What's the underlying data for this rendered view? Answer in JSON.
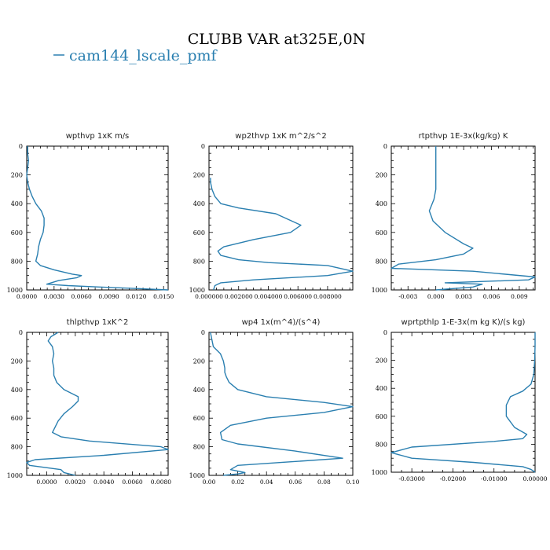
{
  "figure": {
    "title": "CLUBB VAR at325E,0N",
    "legend": [
      {
        "label": "cam144_lscale_pmf",
        "color": "#2a7fb0"
      }
    ]
  },
  "chart_data": [
    {
      "type": "line",
      "title": "wpthvp   1xK m/s",
      "xlim": [
        0,
        0.0155
      ],
      "ylim": [
        1000,
        0
      ],
      "xticks": [
        0.0,
        0.003,
        0.006,
        0.009,
        0.012,
        0.015
      ],
      "xtick_labels": [
        "0.0000",
        "0.0030",
        "0.0060",
        "0.0090",
        "0.0120",
        "0.0150"
      ],
      "yticks": [
        0,
        200,
        400,
        600,
        800,
        1000
      ],
      "ytick_labels": [
        "0",
        "200",
        "400",
        "600",
        "800",
        "1000"
      ],
      "series": [
        {
          "color": "#2a7fb0",
          "x": [
            0.0001,
            0.0001,
            0.0002,
            0.0001,
            0.0,
            0.0001,
            0.0003,
            0.0006,
            0.001,
            0.0016,
            0.0019,
            0.0019,
            0.0018,
            0.0015,
            0.0013,
            0.0012,
            0.001,
            0.0015,
            0.003,
            0.005,
            0.006,
            0.0055,
            0.0035,
            0.0022,
            0.0045,
            0.008,
            0.012,
            0.0155
          ],
          "y": [
            0,
            50,
            100,
            150,
            200,
            250,
            300,
            350,
            400,
            450,
            500,
            550,
            600,
            650,
            700,
            750,
            800,
            830,
            860,
            890,
            900,
            915,
            935,
            960,
            970,
            980,
            990,
            1000
          ]
        }
      ]
    },
    {
      "type": "line",
      "title": "wp2thvp   1xK m^2/s^2",
      "xlim": [
        0,
        0.0097
      ],
      "ylim": [
        1000,
        0
      ],
      "xticks": [
        0.0,
        0.002,
        0.004,
        0.006,
        0.008
      ],
      "xtick_labels": [
        "0.000000",
        "0.002000",
        "0.004000",
        "0.006000",
        "0.008000"
      ],
      "yticks": [
        0,
        200,
        400,
        600,
        800,
        1000
      ],
      "ytick_labels": [
        "0",
        "200",
        "400",
        "600",
        "800",
        "1000"
      ],
      "series": [
        {
          "color": "#2a7fb0",
          "x": [
            0.0001,
            0.0001,
            0.0002,
            0.0004,
            0.0008,
            0.002,
            0.0045,
            0.0062,
            0.0055,
            0.003,
            0.001,
            0.0006,
            0.0008,
            0.002,
            0.004,
            0.008,
            0.0097,
            0.008,
            0.003,
            0.0008,
            0.0004,
            0.0003
          ],
          "y": [
            220,
            250,
            300,
            350,
            400,
            430,
            470,
            550,
            600,
            650,
            700,
            730,
            760,
            790,
            810,
            830,
            870,
            900,
            930,
            950,
            970,
            1000
          ]
        }
      ]
    },
    {
      "type": "line",
      "title": "rtpthvp   1E-3x(kg/kg) K",
      "xlim": [
        -0.0048,
        0.0107
      ],
      "ylim": [
        1000,
        0
      ],
      "xticks": [
        -0.003,
        0.0,
        0.003,
        0.006,
        0.009
      ],
      "xtick_labels": [
        "-0.003",
        "0.000",
        "0.003",
        "0.006",
        "0.009"
      ],
      "yticks": [
        0,
        200,
        400,
        600,
        800,
        1000
      ],
      "ytick_labels": [
        "0",
        "200",
        "400",
        "600",
        "800",
        "1000"
      ],
      "series": [
        {
          "color": "#2a7fb0",
          "x": [
            0.0,
            0.0,
            0.0,
            0.0,
            0.0,
            0.0,
            0.0,
            -0.0002,
            -0.0007,
            -0.0003,
            0.001,
            0.003,
            0.004,
            0.003,
            0.0,
            -0.004,
            -0.0048,
            0.004,
            0.0107,
            0.01,
            0.001,
            0.005,
            0.004,
            0.0
          ],
          "y": [
            0,
            50,
            100,
            150,
            200,
            250,
            300,
            370,
            450,
            520,
            600,
            680,
            710,
            750,
            790,
            820,
            850,
            870,
            910,
            930,
            950,
            960,
            980,
            1000
          ]
        }
      ]
    },
    {
      "type": "line",
      "title": "thlpthvp   1xK^2",
      "xlim": [
        -0.0014,
        0.0085
      ],
      "ylim": [
        1000,
        0
      ],
      "xticks": [
        0.0,
        0.002,
        0.004,
        0.006,
        0.008
      ],
      "xtick_labels": [
        "0.0000",
        "0.0020",
        "0.0040",
        "0.0060",
        "0.0080"
      ],
      "yticks": [
        0,
        200,
        400,
        600,
        800,
        1000
      ],
      "ytick_labels": [
        "0",
        "200",
        "400",
        "600",
        "800",
        "1000"
      ],
      "series": [
        {
          "color": "#2a7fb0",
          "x": [
            0.0008,
            0.0003,
            0.0001,
            0.0004,
            0.0005,
            0.0004,
            0.0005,
            0.0005,
            0.0007,
            0.0012,
            0.0022,
            0.0022,
            0.0018,
            0.0012,
            0.0008,
            0.0006,
            0.0004,
            0.001,
            0.003,
            0.008,
            0.0085,
            0.004,
            -0.0008,
            -0.0014,
            -0.0012,
            0.001,
            0.0012,
            0.002
          ],
          "y": [
            0,
            30,
            60,
            100,
            150,
            200,
            250,
            300,
            350,
            400,
            450,
            480,
            520,
            570,
            620,
            660,
            700,
            730,
            760,
            800,
            820,
            860,
            890,
            910,
            930,
            960,
            980,
            1000
          ]
        }
      ]
    },
    {
      "type": "line",
      "title": "wp4   1x(m^4)/(s^4)",
      "xlim": [
        0,
        0.1
      ],
      "ylim": [
        1000,
        0
      ],
      "xticks": [
        0.0,
        0.02,
        0.04,
        0.06,
        0.08,
        0.1
      ],
      "xtick_labels": [
        "0.00",
        "0.02",
        "0.04",
        "0.06",
        "0.08",
        "0.10"
      ],
      "yticks": [
        0,
        200,
        400,
        600,
        800,
        1000
      ],
      "ytick_labels": [
        "0",
        "200",
        "400",
        "600",
        "800",
        "1000"
      ],
      "series": [
        {
          "color": "#2a7fb0",
          "x": [
            0.001,
            0.003,
            0.008,
            0.01,
            0.011,
            0.011,
            0.012,
            0.014,
            0.02,
            0.04,
            0.08,
            0.1,
            0.08,
            0.04,
            0.015,
            0.008,
            0.009,
            0.02,
            0.06,
            0.093,
            0.05,
            0.02,
            0.015,
            0.025,
            0.02,
            0.01
          ],
          "y": [
            0,
            100,
            150,
            200,
            250,
            280,
            310,
            350,
            400,
            450,
            490,
            520,
            560,
            600,
            650,
            700,
            750,
            780,
            830,
            880,
            910,
            930,
            960,
            980,
            990,
            1000
          ]
        }
      ]
    },
    {
      "type": "line",
      "title": "wprtpthlp   1-E-3x(m kg K)/(s kg)",
      "xlim": [
        -0.035,
        0.0
      ],
      "ylim": [
        1000,
        0
      ],
      "xticks": [
        -0.03,
        -0.02,
        -0.01,
        0.0
      ],
      "xtick_labels": [
        "-0.03000",
        "-0.02000",
        "-0.01000",
        "0.00000"
      ],
      "yticks": [
        0,
        200,
        400,
        600,
        800,
        1000
      ],
      "ytick_labels": [
        "0",
        "200",
        "400",
        "600",
        "800",
        "1000"
      ],
      "series": [
        {
          "color": "#2a7fb0",
          "x": [
            0.0,
            0.0,
            -0.0001,
            -0.0003,
            -0.001,
            -0.003,
            -0.006,
            -0.007,
            -0.007,
            -0.005,
            -0.002,
            -0.003,
            -0.01,
            -0.03,
            -0.035,
            -0.03,
            -0.015,
            -0.003,
            -0.001,
            0.0
          ],
          "y": [
            0,
            100,
            200,
            300,
            370,
            420,
            460,
            520,
            600,
            680,
            730,
            760,
            780,
            820,
            860,
            900,
            930,
            960,
            980,
            1000
          ]
        }
      ]
    }
  ]
}
